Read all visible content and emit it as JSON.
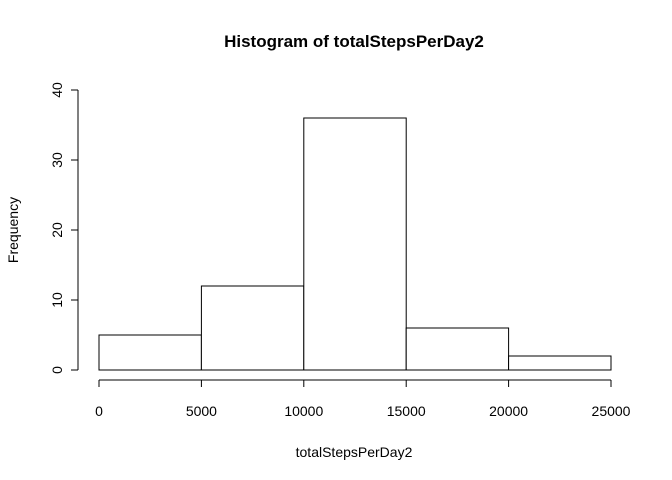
{
  "chart_data": {
    "type": "bar",
    "title": "Histogram of totalStepsPerDay2",
    "xlabel": "totalStepsPerDay2",
    "ylabel": "Frequency",
    "bins": [
      {
        "from": 0,
        "to": 5000,
        "count": 5
      },
      {
        "from": 5000,
        "to": 10000,
        "count": 12
      },
      {
        "from": 10000,
        "to": 15000,
        "count": 36
      },
      {
        "from": 15000,
        "to": 20000,
        "count": 6
      },
      {
        "from": 20000,
        "to": 25000,
        "count": 2
      }
    ],
    "xlim": [
      0,
      25000
    ],
    "ylim": [
      0,
      40
    ],
    "xticks": [
      0,
      5000,
      10000,
      15000,
      20000,
      25000
    ],
    "yticks": [
      0,
      10,
      20,
      30,
      40
    ],
    "grid": false,
    "colors": {
      "bar_fill": "#ffffff",
      "bar_stroke": "#000000",
      "axis": "#000000",
      "text": "#000000"
    }
  }
}
